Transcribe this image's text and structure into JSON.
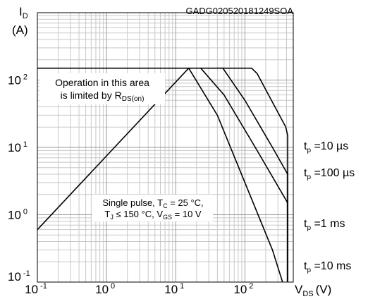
{
  "chart_data": {
    "type": "line",
    "code": "GADG020520181249SOA",
    "x_axis": {
      "label": "V",
      "label_sub": "DS",
      "unit": "(V)",
      "scale": "log",
      "range": [
        0.1,
        500
      ],
      "ticks": [
        {
          "value": 0.1,
          "base": "10",
          "exp": "-1"
        },
        {
          "value": 1,
          "base": "10",
          "exp": "0"
        },
        {
          "value": 10,
          "base": "10",
          "exp": "1"
        },
        {
          "value": 100,
          "base": "10",
          "exp": "2"
        }
      ]
    },
    "y_axis": {
      "label": "I",
      "label_sub": "D",
      "unit": "(A)",
      "scale": "log",
      "range": [
        0.1,
        1000
      ],
      "ticks": [
        {
          "value": 0.1,
          "base": "10",
          "exp": "-1"
        },
        {
          "value": 1,
          "base": "10",
          "exp": "0"
        },
        {
          "value": 10,
          "base": "10",
          "exp": "1"
        },
        {
          "value": 100,
          "base": "10",
          "exp": "2"
        }
      ]
    },
    "grid": true,
    "rds_limit": {
      "points": [
        [
          0.1,
          0.6
        ],
        [
          15.4,
          150
        ]
      ],
      "annotation": [
        "Operation in this area",
        "is limited by R",
        "DS(on)"
      ]
    },
    "current_limit": 150,
    "curves": [
      {
        "label_main": "t",
        "label_sub": "p",
        "label_rest": " =10 µs",
        "points": [
          [
            0.1,
            150
          ],
          [
            125,
            150
          ],
          [
            150,
            125
          ],
          [
            390,
            20
          ],
          [
            415,
            15
          ],
          [
            415,
            0.1
          ]
        ]
      },
      {
        "label_main": "t",
        "label_sub": "p",
        "label_rest": " =100 µs",
        "points": [
          [
            40,
            150
          ],
          [
            48,
            150
          ],
          [
            100,
            50
          ],
          [
            250,
            10
          ],
          [
            415,
            4
          ],
          [
            415,
            0.1
          ]
        ]
      },
      {
        "label_main": "t",
        "label_sub": "p",
        "label_rest": " =1 ms",
        "points": [
          [
            23,
            150
          ],
          [
            50,
            60
          ],
          [
            150,
            9
          ],
          [
            415,
            1.5
          ],
          [
            415,
            0.1
          ]
        ]
      },
      {
        "label_main": "t",
        "label_sub": "p",
        "label_rest": " =10 ms",
        "points": [
          [
            15.4,
            150
          ],
          [
            40,
            30
          ],
          [
            100,
            3
          ],
          [
            250,
            0.3
          ],
          [
            350,
            0.1
          ]
        ]
      }
    ],
    "conditions": {
      "line1_a": "Single pulse, T",
      "line1_sub": "C",
      "line1_b": " = 25 °C,",
      "line2_a": "T",
      "line2_sub": "J",
      "line2_b": " ≤ 150 °C, V",
      "line2_sub2": "GS",
      "line2_c": " = 10 V"
    }
  }
}
